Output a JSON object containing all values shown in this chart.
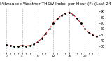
{
  "title": "Milwaukee Weather THSW Index per Hour (F) (Last 24 Hours)",
  "values": [
    33,
    32,
    31,
    31,
    32,
    31,
    32,
    34,
    38,
    44,
    52,
    61,
    70,
    78,
    83,
    87,
    88,
    85,
    78,
    70,
    61,
    54,
    50,
    47
  ],
  "ylim": [
    20,
    95
  ],
  "ytick_values": [
    30,
    40,
    50,
    60,
    70,
    80,
    90
  ],
  "ytick_labels": [
    "30",
    "40",
    "50",
    "60",
    "70",
    "80",
    "90"
  ],
  "line_color": "#cc0000",
  "marker_color": "#000000",
  "bg_color": "#ffffff",
  "plot_bg": "#ffffff",
  "grid_color": "#999999",
  "title_color": "#000000",
  "title_fontsize": 4.2,
  "tick_fontsize": 3.5,
  "num_points": 24,
  "vgrid_positions": [
    0,
    4,
    8,
    12,
    16,
    20,
    23
  ]
}
